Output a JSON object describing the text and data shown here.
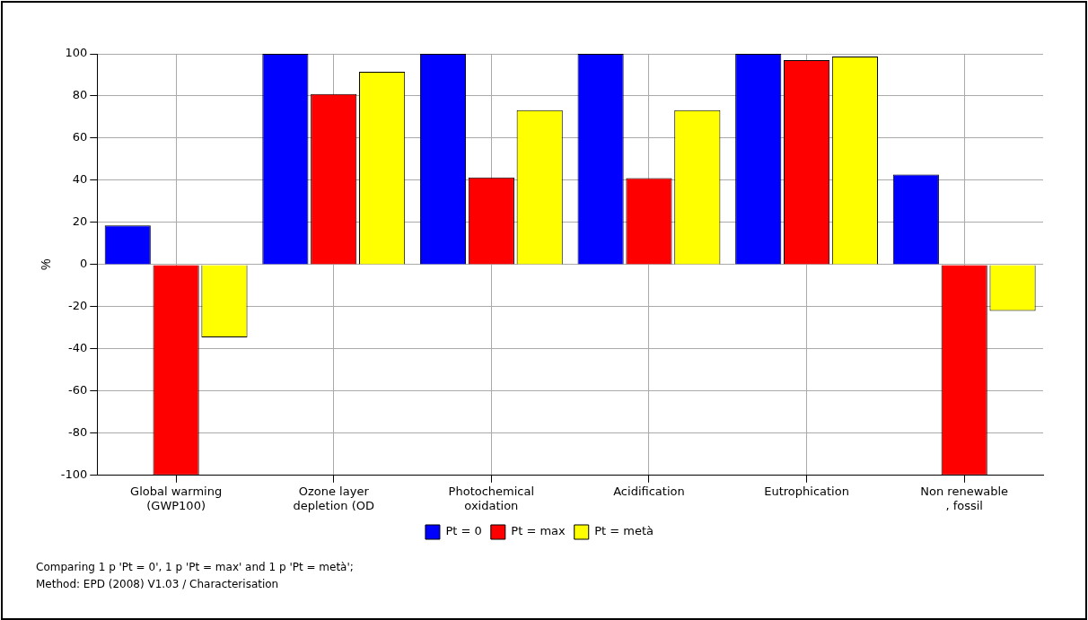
{
  "chart_data": {
    "type": "bar",
    "categories": [
      "Global warming\n(GWP100)",
      "Ozone layer\ndepletion (OD",
      "Photochemical\noxidation",
      "Acidification",
      "Eutrophication",
      "Non renewable\n, fossil"
    ],
    "series": [
      {
        "name": "Pt = 0",
        "color": "#0000ff",
        "values": [
          18.6,
          100,
          100,
          100,
          100,
          42.7
        ]
      },
      {
        "name": "Pt = max",
        "color": "#ff0000",
        "values": [
          -100,
          81,
          41.4,
          41,
          97,
          -100
        ]
      },
      {
        "name": "Pt = metà",
        "color": "#ffff00",
        "values": [
          -34.5,
          91.5,
          73.3,
          73.3,
          98.7,
          -22
        ]
      }
    ],
    "ylabel": "%",
    "ylim": [
      -100,
      100
    ],
    "yticks": [
      -100,
      -80,
      -60,
      -40,
      -20,
      0,
      20,
      40,
      60,
      80,
      100
    ],
    "grid": true,
    "legend": "bottom",
    "annotations": [
      "Comparing 1 p 'Pt = 0', 1 p 'Pt = max' and 1 p 'Pt = metà';",
      "Method: EPD (2008) V1.03 / Characterisation"
    ]
  }
}
